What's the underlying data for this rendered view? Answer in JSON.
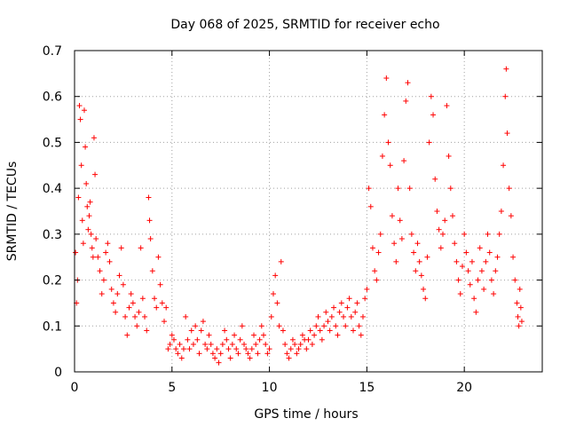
{
  "chart_data": {
    "type": "scatter",
    "title": "Day 068 of 2025, SRMTID for receiver echo",
    "xlabel": "GPS time / hours",
    "ylabel": "SRMTID / TECUs",
    "xlim": [
      0,
      24
    ],
    "ylim": [
      0,
      0.7
    ],
    "xticks": [
      0,
      5,
      10,
      15,
      20
    ],
    "xtick_labels": [
      "0",
      "5",
      "10",
      "15",
      "20"
    ],
    "yticks": [
      0,
      0.1,
      0.2,
      0.3,
      0.4,
      0.5,
      0.6,
      0.7
    ],
    "ytick_labels": [
      "0",
      "0.1",
      "0.2",
      "0.3",
      "0.4",
      "0.5",
      "0.6",
      "0.7"
    ],
    "grid": true,
    "marker": "plus",
    "color": "#ff0000",
    "series": [
      {
        "name": "SRMTID",
        "points": [
          [
            0.05,
            0.26
          ],
          [
            0.1,
            0.15
          ],
          [
            0.15,
            0.2
          ],
          [
            0.2,
            0.38
          ],
          [
            0.25,
            0.58
          ],
          [
            0.3,
            0.55
          ],
          [
            0.35,
            0.45
          ],
          [
            0.4,
            0.33
          ],
          [
            0.45,
            0.28
          ],
          [
            0.5,
            0.57
          ],
          [
            0.55,
            0.49
          ],
          [
            0.6,
            0.41
          ],
          [
            0.65,
            0.36
          ],
          [
            0.7,
            0.31
          ],
          [
            0.75,
            0.34
          ],
          [
            0.8,
            0.37
          ],
          [
            0.85,
            0.3
          ],
          [
            0.9,
            0.27
          ],
          [
            0.95,
            0.25
          ],
          [
            1.0,
            0.51
          ],
          [
            1.05,
            0.43
          ],
          [
            1.1,
            0.29
          ],
          [
            1.2,
            0.25
          ],
          [
            1.3,
            0.22
          ],
          [
            1.4,
            0.17
          ],
          [
            1.5,
            0.2
          ],
          [
            1.6,
            0.26
          ],
          [
            1.7,
            0.28
          ],
          [
            1.8,
            0.24
          ],
          [
            1.9,
            0.18
          ],
          [
            2.0,
            0.15
          ],
          [
            2.1,
            0.13
          ],
          [
            2.2,
            0.17
          ],
          [
            2.3,
            0.21
          ],
          [
            2.4,
            0.27
          ],
          [
            2.5,
            0.19
          ],
          [
            2.6,
            0.12
          ],
          [
            2.7,
            0.08
          ],
          [
            2.8,
            0.14
          ],
          [
            2.9,
            0.17
          ],
          [
            3.0,
            0.15
          ],
          [
            3.1,
            0.12
          ],
          [
            3.2,
            0.1
          ],
          [
            3.3,
            0.13
          ],
          [
            3.4,
            0.27
          ],
          [
            3.5,
            0.16
          ],
          [
            3.6,
            0.12
          ],
          [
            3.7,
            0.09
          ],
          [
            3.8,
            0.38
          ],
          [
            3.85,
            0.33
          ],
          [
            3.9,
            0.29
          ],
          [
            4.0,
            0.22
          ],
          [
            4.1,
            0.16
          ],
          [
            4.2,
            0.14
          ],
          [
            4.3,
            0.25
          ],
          [
            4.4,
            0.19
          ],
          [
            4.5,
            0.15
          ],
          [
            4.6,
            0.11
          ],
          [
            4.7,
            0.14
          ],
          [
            4.8,
            0.05
          ],
          [
            4.9,
            0.06
          ],
          [
            5.0,
            0.08
          ],
          [
            5.1,
            0.07
          ],
          [
            5.2,
            0.05
          ],
          [
            5.3,
            0.04
          ],
          [
            5.4,
            0.06
          ],
          [
            5.5,
            0.03
          ],
          [
            5.6,
            0.05
          ],
          [
            5.7,
            0.12
          ],
          [
            5.8,
            0.07
          ],
          [
            5.9,
            0.05
          ],
          [
            6.0,
            0.09
          ],
          [
            6.1,
            0.06
          ],
          [
            6.2,
            0.1
          ],
          [
            6.3,
            0.07
          ],
          [
            6.4,
            0.04
          ],
          [
            6.5,
            0.09
          ],
          [
            6.6,
            0.11
          ],
          [
            6.7,
            0.06
          ],
          [
            6.8,
            0.05
          ],
          [
            6.9,
            0.08
          ],
          [
            7.0,
            0.06
          ],
          [
            7.1,
            0.04
          ],
          [
            7.2,
            0.03
          ],
          [
            7.3,
            0.05
          ],
          [
            7.4,
            0.02
          ],
          [
            7.5,
            0.04
          ],
          [
            7.6,
            0.06
          ],
          [
            7.7,
            0.09
          ],
          [
            7.8,
            0.07
          ],
          [
            7.9,
            0.05
          ],
          [
            8.0,
            0.03
          ],
          [
            8.1,
            0.06
          ],
          [
            8.2,
            0.08
          ],
          [
            8.3,
            0.05
          ],
          [
            8.4,
            0.04
          ],
          [
            8.5,
            0.07
          ],
          [
            8.6,
            0.1
          ],
          [
            8.7,
            0.06
          ],
          [
            8.8,
            0.05
          ],
          [
            8.9,
            0.04
          ],
          [
            9.0,
            0.03
          ],
          [
            9.1,
            0.05
          ],
          [
            9.2,
            0.08
          ],
          [
            9.3,
            0.06
          ],
          [
            9.4,
            0.04
          ],
          [
            9.5,
            0.07
          ],
          [
            9.6,
            0.1
          ],
          [
            9.7,
            0.08
          ],
          [
            9.8,
            0.06
          ],
          [
            9.9,
            0.04
          ],
          [
            10.0,
            0.05
          ],
          [
            10.1,
            0.12
          ],
          [
            10.2,
            0.17
          ],
          [
            10.3,
            0.21
          ],
          [
            10.4,
            0.15
          ],
          [
            10.5,
            0.1
          ],
          [
            10.6,
            0.24
          ],
          [
            10.7,
            0.09
          ],
          [
            10.8,
            0.06
          ],
          [
            10.9,
            0.04
          ],
          [
            11.0,
            0.03
          ],
          [
            11.1,
            0.05
          ],
          [
            11.2,
            0.07
          ],
          [
            11.3,
            0.06
          ],
          [
            11.4,
            0.04
          ],
          [
            11.5,
            0.05
          ],
          [
            11.6,
            0.06
          ],
          [
            11.7,
            0.08
          ],
          [
            11.8,
            0.07
          ],
          [
            11.9,
            0.05
          ],
          [
            12.0,
            0.07
          ],
          [
            12.1,
            0.09
          ],
          [
            12.2,
            0.06
          ],
          [
            12.3,
            0.08
          ],
          [
            12.4,
            0.1
          ],
          [
            12.5,
            0.12
          ],
          [
            12.6,
            0.09
          ],
          [
            12.7,
            0.07
          ],
          [
            12.8,
            0.1
          ],
          [
            12.9,
            0.13
          ],
          [
            13.0,
            0.11
          ],
          [
            13.1,
            0.09
          ],
          [
            13.2,
            0.12
          ],
          [
            13.3,
            0.14
          ],
          [
            13.4,
            0.1
          ],
          [
            13.5,
            0.08
          ],
          [
            13.6,
            0.13
          ],
          [
            13.7,
            0.15
          ],
          [
            13.8,
            0.12
          ],
          [
            13.9,
            0.1
          ],
          [
            14.0,
            0.14
          ],
          [
            14.1,
            0.16
          ],
          [
            14.2,
            0.12
          ],
          [
            14.3,
            0.09
          ],
          [
            14.4,
            0.13
          ],
          [
            14.5,
            0.15
          ],
          [
            14.6,
            0.1
          ],
          [
            14.7,
            0.08
          ],
          [
            14.8,
            0.12
          ],
          [
            14.9,
            0.16
          ],
          [
            15.0,
            0.18
          ],
          [
            15.1,
            0.4
          ],
          [
            15.2,
            0.36
          ],
          [
            15.3,
            0.27
          ],
          [
            15.4,
            0.22
          ],
          [
            15.5,
            0.2
          ],
          [
            15.6,
            0.26
          ],
          [
            15.7,
            0.3
          ],
          [
            15.8,
            0.47
          ],
          [
            15.9,
            0.56
          ],
          [
            16.0,
            0.64
          ],
          [
            16.1,
            0.5
          ],
          [
            16.2,
            0.45
          ],
          [
            16.3,
            0.34
          ],
          [
            16.4,
            0.28
          ],
          [
            16.5,
            0.24
          ],
          [
            16.6,
            0.4
          ],
          [
            16.7,
            0.33
          ],
          [
            16.8,
            0.29
          ],
          [
            16.9,
            0.46
          ],
          [
            17.0,
            0.59
          ],
          [
            17.1,
            0.63
          ],
          [
            17.2,
            0.4
          ],
          [
            17.3,
            0.3
          ],
          [
            17.4,
            0.26
          ],
          [
            17.5,
            0.22
          ],
          [
            17.6,
            0.28
          ],
          [
            17.7,
            0.24
          ],
          [
            17.8,
            0.21
          ],
          [
            17.9,
            0.18
          ],
          [
            18.0,
            0.16
          ],
          [
            18.1,
            0.25
          ],
          [
            18.2,
            0.5
          ],
          [
            18.3,
            0.6
          ],
          [
            18.4,
            0.56
          ],
          [
            18.5,
            0.42
          ],
          [
            18.6,
            0.35
          ],
          [
            18.7,
            0.31
          ],
          [
            18.8,
            0.27
          ],
          [
            18.9,
            0.3
          ],
          [
            19.0,
            0.33
          ],
          [
            19.1,
            0.58
          ],
          [
            19.2,
            0.47
          ],
          [
            19.3,
            0.4
          ],
          [
            19.4,
            0.34
          ],
          [
            19.5,
            0.28
          ],
          [
            19.6,
            0.24
          ],
          [
            19.7,
            0.2
          ],
          [
            19.8,
            0.17
          ],
          [
            19.9,
            0.23
          ],
          [
            20.0,
            0.3
          ],
          [
            20.1,
            0.26
          ],
          [
            20.2,
            0.22
          ],
          [
            20.3,
            0.19
          ],
          [
            20.4,
            0.24
          ],
          [
            20.5,
            0.16
          ],
          [
            20.6,
            0.13
          ],
          [
            20.7,
            0.2
          ],
          [
            20.8,
            0.27
          ],
          [
            20.9,
            0.22
          ],
          [
            21.0,
            0.18
          ],
          [
            21.1,
            0.24
          ],
          [
            21.2,
            0.3
          ],
          [
            21.3,
            0.26
          ],
          [
            21.4,
            0.2
          ],
          [
            21.5,
            0.17
          ],
          [
            21.6,
            0.22
          ],
          [
            21.7,
            0.25
          ],
          [
            21.8,
            0.3
          ],
          [
            21.9,
            0.35
          ],
          [
            22.0,
            0.45
          ],
          [
            22.1,
            0.6
          ],
          [
            22.15,
            0.66
          ],
          [
            22.2,
            0.52
          ],
          [
            22.3,
            0.4
          ],
          [
            22.4,
            0.34
          ],
          [
            22.5,
            0.25
          ],
          [
            22.6,
            0.2
          ],
          [
            22.7,
            0.15
          ],
          [
            22.75,
            0.12
          ],
          [
            22.8,
            0.1
          ],
          [
            22.85,
            0.18
          ],
          [
            22.9,
            0.14
          ],
          [
            22.95,
            0.11
          ]
        ]
      }
    ]
  }
}
